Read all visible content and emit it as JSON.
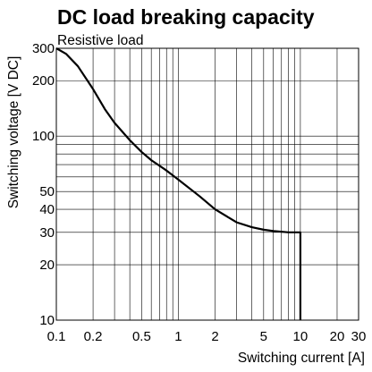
{
  "chart_data": {
    "type": "line",
    "title": "DC load breaking capacity",
    "subtitle": "Resistive load",
    "xlabel": "Switching current [A]",
    "ylabel": "Switching voltage [V DC]",
    "xscale": "log",
    "yscale": "log",
    "xlim": [
      0.1,
      30
    ],
    "ylim": [
      10,
      300
    ],
    "grid": true,
    "x_gridlines": [
      0.2,
      0.3,
      0.4,
      0.5,
      0.6,
      0.7,
      0.8,
      0.9,
      1,
      2,
      3,
      4,
      5,
      6,
      7,
      8,
      9,
      10,
      20
    ],
    "y_gridlines": [
      20,
      30,
      40,
      50,
      60,
      70,
      80,
      90,
      100,
      200
    ],
    "x_ticks": [
      0.1,
      0.2,
      0.5,
      1,
      2,
      5,
      10,
      20,
      30
    ],
    "x_tick_labels": [
      "0.1",
      "0.2",
      "0.5",
      "1",
      "2",
      "5",
      "10",
      "20",
      "30"
    ],
    "y_ticks": [
      10,
      20,
      30,
      40,
      50,
      100,
      200,
      300
    ],
    "y_tick_labels": [
      "10",
      "20",
      "30",
      "40",
      "50",
      "100",
      "200",
      "300"
    ],
    "series": [
      {
        "color": "#000000",
        "x": [
          0.1,
          0.12,
          0.15,
          0.2,
          0.25,
          0.3,
          0.4,
          0.5,
          0.6,
          0.8,
          1,
          1.5,
          2,
          3,
          4,
          5,
          6,
          8,
          10,
          10,
          10
        ],
        "y": [
          300,
          280,
          240,
          180,
          140,
          118,
          95,
          82,
          74,
          65,
          58,
          47,
          40,
          34,
          32,
          31,
          30.5,
          30,
          30,
          20,
          10
        ]
      }
    ]
  }
}
